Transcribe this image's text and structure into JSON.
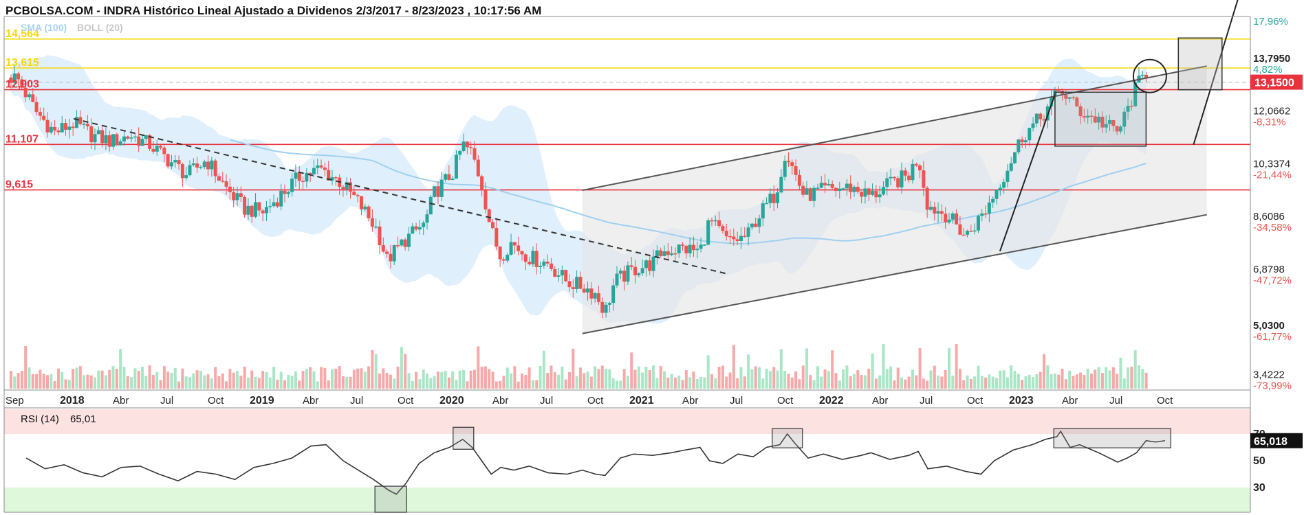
{
  "header": {
    "title": "PCBOLSA.COM - INDRA Histórico Lineal Ajustado a Dividenos 2/3/2017 - 8/23/2023 , 10:17:56 AM",
    "indicator_sma": "SMA (100)",
    "indicator_boll": "BOLL (20)"
  },
  "colors": {
    "up": "#26a69a",
    "down": "#ef5350",
    "support_line": "#e8323c",
    "yellow_line": "#f5d90a",
    "sma": "#9fd0f0",
    "boll_fill": "#d6eafb",
    "channel_fill": "#e4e4e4",
    "rsi_over": "#fde2e2",
    "rsi_under": "#dff8dc"
  },
  "horizontal_levels": [
    {
      "value": 14.564,
      "label": "14,564",
      "color": "yellow"
    },
    {
      "value": 13.615,
      "label": "13,615",
      "color": "yellow"
    },
    {
      "value": 12.903,
      "label": "12,903",
      "color": "red"
    },
    {
      "value": 11.107,
      "label": "11,107",
      "color": "red"
    },
    {
      "value": 9.615,
      "label": "9,615",
      "color": "red"
    }
  ],
  "price_axis": [
    {
      "value": 13.795,
      "label": "13,7950",
      "pct": "4,82%",
      "pct_color": "green"
    },
    {
      "value": 12.0662,
      "label": "12,0662",
      "pct": "-8,31%",
      "pct_color": "red"
    },
    {
      "value": 10.3374,
      "label": "10,3374",
      "pct": "-21,44%",
      "pct_color": "red"
    },
    {
      "value": 8.6086,
      "label": "8,6086",
      "pct": "-34,58%",
      "pct_color": "red"
    },
    {
      "value": 6.8798,
      "label": "6,8798",
      "pct": "-47,72%",
      "pct_color": "red"
    },
    {
      "value": 5.03,
      "label": "5,0300",
      "pct": "-61,77%",
      "pct_color": "red"
    },
    {
      "value": 3.4222,
      "label": "3,4222",
      "pct": "-73,99%",
      "pct_color": "red"
    }
  ],
  "top_pct_label": "17,96%",
  "last_price": {
    "value": 13.15,
    "label": "13,1500"
  },
  "x_axis": [
    {
      "label": "Sep",
      "t": 2017.67,
      "bold": false
    },
    {
      "label": "2018",
      "t": 2018.0,
      "bold": true
    },
    {
      "label": "Abr",
      "t": 2018.25,
      "bold": false
    },
    {
      "label": "Jul",
      "t": 2018.5,
      "bold": false
    },
    {
      "label": "Oct",
      "t": 2018.75,
      "bold": false
    },
    {
      "label": "2019",
      "t": 2019.0,
      "bold": true
    },
    {
      "label": "Abr",
      "t": 2019.25,
      "bold": false
    },
    {
      "label": "Jul",
      "t": 2019.5,
      "bold": false
    },
    {
      "label": "Oct",
      "t": 2019.75,
      "bold": false
    },
    {
      "label": "2020",
      "t": 2020.0,
      "bold": true
    },
    {
      "label": "Abr",
      "t": 2020.25,
      "bold": false
    },
    {
      "label": "Jul",
      "t": 2020.5,
      "bold": false
    },
    {
      "label": "Oct",
      "t": 2020.75,
      "bold": false
    },
    {
      "label": "2021",
      "t": 2021.0,
      "bold": true
    },
    {
      "label": "Abr",
      "t": 2021.25,
      "bold": false
    },
    {
      "label": "Jul",
      "t": 2021.5,
      "bold": false
    },
    {
      "label": "Oct",
      "t": 2021.75,
      "bold": false
    },
    {
      "label": "2022",
      "t": 2022.0,
      "bold": true
    },
    {
      "label": "Abr",
      "t": 2022.25,
      "bold": false
    },
    {
      "label": "Jul",
      "t": 2022.5,
      "bold": false
    },
    {
      "label": "Oct",
      "t": 2022.75,
      "bold": false
    },
    {
      "label": "2023",
      "t": 2023.0,
      "bold": true
    },
    {
      "label": "Abr",
      "t": 2023.25,
      "bold": false
    },
    {
      "label": "Jul",
      "t": 2023.5,
      "bold": false
    },
    {
      "label": "Oct",
      "t": 2023.75,
      "bold": false
    }
  ],
  "rsi": {
    "label": "RSI (14)",
    "value_label": "65,01",
    "badge": "65,018",
    "levels": [
      {
        "value": 70,
        "label": "70"
      },
      {
        "value": 50,
        "label": "50"
      },
      {
        "value": 30,
        "label": "30"
      }
    ],
    "series": [
      [
        2017.75,
        52
      ],
      [
        2017.85,
        44
      ],
      [
        2017.95,
        47
      ],
      [
        2018.05,
        41
      ],
      [
        2018.15,
        38
      ],
      [
        2018.25,
        45
      ],
      [
        2018.35,
        46
      ],
      [
        2018.45,
        40
      ],
      [
        2018.55,
        35
      ],
      [
        2018.65,
        42
      ],
      [
        2018.75,
        40
      ],
      [
        2018.85,
        36
      ],
      [
        2018.95,
        45
      ],
      [
        2019.05,
        48
      ],
      [
        2019.15,
        52
      ],
      [
        2019.25,
        61
      ],
      [
        2019.33,
        62
      ],
      [
        2019.42,
        50
      ],
      [
        2019.5,
        43
      ],
      [
        2019.58,
        36
      ],
      [
        2019.66,
        28
      ],
      [
        2019.7,
        25
      ],
      [
        2019.75,
        33
      ],
      [
        2019.82,
        48
      ],
      [
        2019.9,
        56
      ],
      [
        2019.98,
        60
      ],
      [
        2020.05,
        66
      ],
      [
        2020.1,
        60
      ],
      [
        2020.15,
        50
      ],
      [
        2020.2,
        40
      ],
      [
        2020.25,
        45
      ],
      [
        2020.32,
        43
      ],
      [
        2020.4,
        46
      ],
      [
        2020.5,
        41
      ],
      [
        2020.6,
        40
      ],
      [
        2020.68,
        43
      ],
      [
        2020.75,
        40
      ],
      [
        2020.8,
        39
      ],
      [
        2020.88,
        52
      ],
      [
        2020.95,
        55
      ],
      [
        2021.05,
        54
      ],
      [
        2021.15,
        56
      ],
      [
        2021.22,
        58
      ],
      [
        2021.3,
        60
      ],
      [
        2021.35,
        50
      ],
      [
        2021.42,
        48
      ],
      [
        2021.5,
        55
      ],
      [
        2021.58,
        53
      ],
      [
        2021.65,
        60
      ],
      [
        2021.72,
        62
      ],
      [
        2021.76,
        70
      ],
      [
        2021.8,
        63
      ],
      [
        2021.87,
        52
      ],
      [
        2021.95,
        55
      ],
      [
        2022.05,
        51
      ],
      [
        2022.15,
        54
      ],
      [
        2022.2,
        56
      ],
      [
        2022.3,
        51
      ],
      [
        2022.4,
        54
      ],
      [
        2022.45,
        57
      ],
      [
        2022.5,
        44
      ],
      [
        2022.6,
        46
      ],
      [
        2022.7,
        42
      ],
      [
        2022.78,
        40
      ],
      [
        2022.85,
        50
      ],
      [
        2022.95,
        58
      ],
      [
        2023.05,
        62
      ],
      [
        2023.12,
        66
      ],
      [
        2023.18,
        68
      ],
      [
        2023.2,
        72
      ],
      [
        2023.25,
        60
      ],
      [
        2023.3,
        62
      ],
      [
        2023.4,
        56
      ],
      [
        2023.5,
        49
      ],
      [
        2023.55,
        52
      ],
      [
        2023.6,
        56
      ],
      [
        2023.65,
        65
      ],
      [
        2023.7,
        64
      ],
      [
        2023.75,
        65
      ]
    ]
  },
  "chart_data": {
    "type": "candlestick",
    "title": "PCBOLSA.COM - INDRA Histórico Lineal Ajustado a Dividenos 2/3/2017 - 8/23/2023 , 10:17:56 AM",
    "series_close_approx": [
      [
        2017.7,
        13.3
      ],
      [
        2017.8,
        12.2
      ],
      [
        2017.9,
        11.5
      ],
      [
        2018.0,
        11.8
      ],
      [
        2018.1,
        11.4
      ],
      [
        2018.2,
        11.2
      ],
      [
        2018.3,
        11.4
      ],
      [
        2018.4,
        11.1
      ],
      [
        2018.5,
        10.6
      ],
      [
        2018.6,
        10.1
      ],
      [
        2018.7,
        10.6
      ],
      [
        2018.8,
        9.7
      ],
      [
        2018.9,
        9.0
      ],
      [
        2019.0,
        8.9
      ],
      [
        2019.1,
        9.5
      ],
      [
        2019.2,
        10.1
      ],
      [
        2019.3,
        10.3
      ],
      [
        2019.4,
        9.9
      ],
      [
        2019.5,
        9.2
      ],
      [
        2019.6,
        8.3
      ],
      [
        2019.65,
        7.3
      ],
      [
        2019.75,
        8.0
      ],
      [
        2019.85,
        8.5
      ],
      [
        2019.9,
        9.5
      ],
      [
        2020.0,
        10.2
      ],
      [
        2020.05,
        11.1
      ],
      [
        2020.1,
        10.8
      ],
      [
        2020.15,
        9.8
      ],
      [
        2020.2,
        8.3
      ],
      [
        2020.25,
        7.4
      ],
      [
        2020.3,
        7.9
      ],
      [
        2020.4,
        7.4
      ],
      [
        2020.5,
        7.2
      ],
      [
        2020.6,
        6.6
      ],
      [
        2020.7,
        6.4
      ],
      [
        2020.75,
        6.2
      ],
      [
        2020.8,
        5.6
      ],
      [
        2020.85,
        6.6
      ],
      [
        2020.95,
        7.0
      ],
      [
        2021.05,
        7.2
      ],
      [
        2021.1,
        7.6
      ],
      [
        2021.2,
        7.7
      ],
      [
        2021.3,
        7.6
      ],
      [
        2021.35,
        8.6
      ],
      [
        2021.45,
        7.9
      ],
      [
        2021.55,
        8.1
      ],
      [
        2021.6,
        8.7
      ],
      [
        2021.7,
        9.5
      ],
      [
        2021.75,
        10.9
      ],
      [
        2021.85,
        9.4
      ],
      [
        2021.95,
        9.6
      ],
      [
        2022.1,
        9.7
      ],
      [
        2022.2,
        9.4
      ],
      [
        2022.3,
        9.8
      ],
      [
        2022.4,
        10.1
      ],
      [
        2022.45,
        10.7
      ],
      [
        2022.5,
        9.1
      ],
      [
        2022.6,
        8.8
      ],
      [
        2022.7,
        8.1
      ],
      [
        2022.8,
        8.9
      ],
      [
        2022.9,
        10.1
      ],
      [
        2023.0,
        11.4
      ],
      [
        2023.1,
        12.0
      ],
      [
        2023.15,
        12.5
      ],
      [
        2023.2,
        12.9
      ],
      [
        2023.3,
        12.2
      ],
      [
        2023.4,
        11.9
      ],
      [
        2023.5,
        11.5
      ],
      [
        2023.55,
        12.2
      ],
      [
        2023.6,
        13.0
      ],
      [
        2023.65,
        13.5
      ],
      [
        2023.7,
        13.15
      ]
    ]
  }
}
